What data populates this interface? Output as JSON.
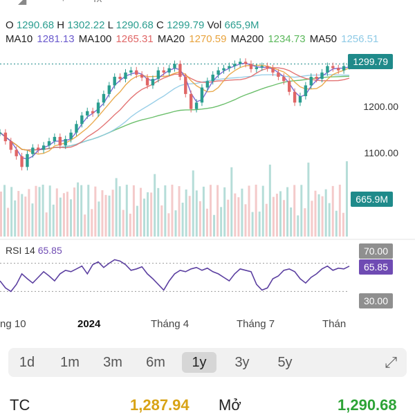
{
  "ohlc": {
    "o_label": "O",
    "o_value": "1290.68",
    "h_label": "H",
    "h_value": "1302.22",
    "l_label": "L",
    "l_value": "1290.68",
    "c_label": "C",
    "c_value": "1299.79",
    "vol_label": "Vol",
    "vol_value": "665,9M"
  },
  "ma": {
    "ma10_label": "MA10",
    "ma10_value": "1281.13",
    "ma100_label": "MA100",
    "ma100_value": "1265.31",
    "ma20_label": "MA20",
    "ma20_value": "1270.59",
    "ma200_label": "MA200",
    "ma200_value": "1234.73",
    "ma50_label": "MA50",
    "ma50_value": "1256.51"
  },
  "price_axis": {
    "current": "1299.79",
    "t1200": "1200.00",
    "t1100": "1100.00",
    "volume": "665.9M"
  },
  "rsi": {
    "label": "RSI 14",
    "value": "65.85",
    "upper": "70.00",
    "lower": "30.00"
  },
  "x_axis": {
    "l1": "ng 10",
    "l2": "2024",
    "l3": "Tháng 4",
    "l4": "Tháng 7",
    "l5": "Thán"
  },
  "timeframes": [
    "1d",
    "1m",
    "3m",
    "6m",
    "1y",
    "3y",
    "5y"
  ],
  "active_timeframe": "1y",
  "stats": {
    "tc_label": "TC",
    "tc_value": "1,287.94",
    "open_label": "Mở",
    "open_value": "1,290.68"
  },
  "colors": {
    "price_tag": "#1f8a8a",
    "volume_tag": "#1f8a8a",
    "rsi_tag": "#6f4bb3",
    "rsi_band": "#8f8f8f",
    "up": "#2a9d8f",
    "down": "#e06666",
    "rsi_line": "#5b3fa0"
  },
  "chart_data": {
    "type": "line",
    "title": "",
    "y_ticks": [
      1200,
      1100
    ],
    "y_range": [
      1030,
      1320
    ],
    "last_close": 1299.79,
    "close_series": [
      1140,
      1120,
      1100,
      1085,
      1060,
      1090,
      1105,
      1100,
      1110,
      1120,
      1130,
      1110,
      1125,
      1140,
      1160,
      1180,
      1190,
      1185,
      1210,
      1230,
      1250,
      1270,
      1265,
      1280,
      1285,
      1275,
      1268,
      1250,
      1265,
      1285,
      1280,
      1290,
      1300,
      1270,
      1230,
      1195,
      1210,
      1245,
      1260,
      1275,
      1285,
      1290,
      1295,
      1300,
      1305,
      1300,
      1288,
      1292,
      1295,
      1290,
      1280,
      1270,
      1260,
      1235,
      1210,
      1225,
      1250,
      1270,
      1265,
      1280,
      1295,
      1290,
      1285,
      1295,
      1299.79
    ],
    "rsi_series": [
      45,
      35,
      30,
      40,
      55,
      48,
      42,
      50,
      58,
      52,
      45,
      55,
      60,
      58,
      62,
      66,
      55,
      68,
      72,
      64,
      70,
      75,
      73,
      68,
      60,
      62,
      65,
      55,
      48,
      40,
      32,
      45,
      55,
      60,
      58,
      62,
      64,
      60,
      63,
      58,
      55,
      50,
      45,
      55,
      62,
      60,
      58,
      40,
      32,
      35,
      48,
      52,
      60,
      62,
      58,
      48,
      42,
      50,
      55,
      62,
      66,
      60,
      63,
      62,
      65.85
    ],
    "rsi_levels": [
      70,
      30
    ]
  }
}
